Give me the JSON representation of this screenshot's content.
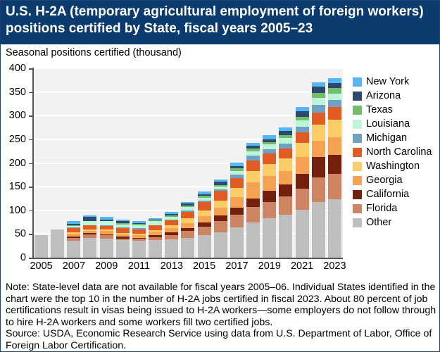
{
  "header": {
    "title": "U.S. H-2A (temporary agricultural employment of foreign workers) positions certified by State, fiscal years 2005–23"
  },
  "note": "Note: State-level data are not available for fiscal years 2005–06. Individual States identified in the chart were the top 10 in the number of H-2A jobs certified in fiscal 2023. About 80 percent of job certifications result in visas being issued to H-2A workers—some employers do not follow through to hire H-2A workers and some workers fill two certified jobs.",
  "source": "Source: USDA, Economic Research Service using data from U.S. Department of Labor, Office of Foreign Labor Certification.",
  "chart_data": {
    "type": "bar",
    "stacked": true,
    "title": "U.S. H-2A (temporary agricultural employment of foreign workers) positions certified by State, fiscal years 2005–23",
    "xlabel": "",
    "ylabel": "Seasonal positions certified (thousand)",
    "ylim": [
      0,
      400
    ],
    "yticks": [
      0,
      50,
      100,
      150,
      200,
      250,
      300,
      350,
      400
    ],
    "xtick_labels": [
      "2005",
      "2007",
      "2009",
      "2011",
      "2013",
      "2015",
      "2017",
      "2019",
      "2021",
      "2023"
    ],
    "grid": true,
    "legend_position": "right",
    "categories": [
      "2005",
      "2006",
      "2007",
      "2008",
      "2009",
      "2010",
      "2011",
      "2012",
      "2013",
      "2014",
      "2015",
      "2016",
      "2017",
      "2018",
      "2019",
      "2020",
      "2021",
      "2022",
      "2023"
    ],
    "series": [
      {
        "name": "Other",
        "color": "#bfbfbf",
        "values": [
          47,
          59,
          36,
          42,
          40,
          37,
          35,
          37,
          39,
          42,
          48,
          54,
          64,
          75,
          84,
          90,
          101,
          118,
          124
        ]
      },
      {
        "name": "Florida",
        "color": "#cd8462",
        "values": [
          0,
          0,
          6,
          7,
          7,
          3,
          5,
          6,
          9,
          15,
          18,
          23,
          26,
          32,
          34,
          39,
          45,
          52,
          53
        ]
      },
      {
        "name": "California",
        "color": "#73200d",
        "values": [
          0,
          0,
          2,
          3,
          2,
          4,
          2,
          4,
          5,
          6,
          8,
          12,
          15,
          18,
          24,
          26,
          31,
          43,
          40
        ]
      },
      {
        "name": "Georgia",
        "color": "#f5a352",
        "values": [
          0,
          0,
          6,
          5,
          7,
          5,
          6,
          8,
          10,
          10,
          14,
          17,
          23,
          34,
          30,
          28,
          36,
          34,
          38
        ]
      },
      {
        "name": "Washington",
        "color": "#fbcd67",
        "values": [
          0,
          0,
          4,
          3,
          3,
          3,
          3,
          3,
          5,
          10,
          11,
          14,
          19,
          24,
          26,
          26,
          29,
          34,
          37
        ]
      },
      {
        "name": "North Carolina",
        "color": "#e05c22",
        "values": [
          0,
          0,
          8,
          8,
          8,
          10,
          8,
          10,
          11,
          14,
          18,
          21,
          21,
          22,
          22,
          22,
          23,
          26,
          26
        ]
      },
      {
        "name": "Michigan",
        "color": "#6fa1c2",
        "values": [
          0,
          0,
          2,
          1,
          1,
          2,
          3,
          1,
          1,
          3,
          3,
          3,
          7,
          11,
          9,
          10,
          12,
          16,
          15
        ]
      },
      {
        "name": "Louisiana",
        "color": "#bdf5d9",
        "values": [
          0,
          0,
          3,
          8,
          9,
          6,
          7,
          8,
          7,
          7,
          7,
          7,
          8,
          8,
          11,
          12,
          13,
          14,
          13
        ]
      },
      {
        "name": "Texas",
        "color": "#73be6a",
        "values": [
          0,
          0,
          2,
          1,
          1,
          3,
          3,
          2,
          3,
          3,
          4,
          3,
          6,
          6,
          4,
          6,
          7,
          11,
          12
        ]
      },
      {
        "name": "Arizona",
        "color": "#2b4a6e",
        "values": [
          0,
          0,
          3,
          8,
          3,
          4,
          1,
          2,
          3,
          4,
          3,
          6,
          5,
          7,
          6,
          9,
          12,
          14,
          11
        ]
      },
      {
        "name": "New York",
        "color": "#55b5f5",
        "values": [
          0,
          0,
          5,
          4,
          5,
          3,
          4,
          3,
          4,
          3,
          6,
          5,
          7,
          6,
          9,
          7,
          9,
          9,
          10
        ]
      }
    ],
    "legend_order": [
      "New York",
      "Arizona",
      "Texas",
      "Louisiana",
      "Michigan",
      "North Carolina",
      "Washington",
      "Georgia",
      "California",
      "Florida",
      "Other"
    ]
  }
}
